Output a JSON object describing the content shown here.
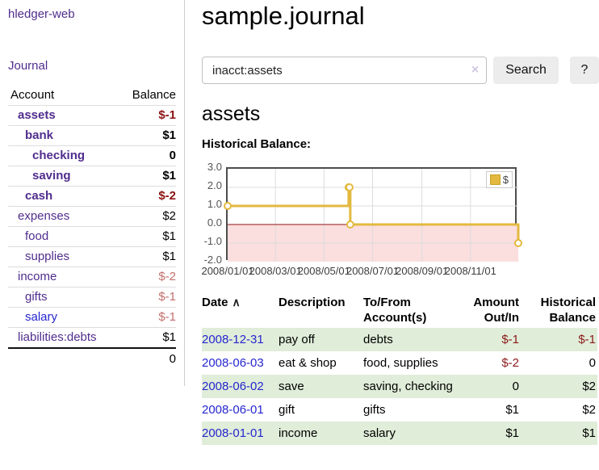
{
  "app": {
    "title": "hledger-web",
    "nav_journal": "Journal"
  },
  "sidebar": {
    "headers": {
      "account": "Account",
      "balance": "Balance"
    },
    "accounts": [
      {
        "name": "assets",
        "balance": "$-1",
        "indent": 1,
        "bold": true
      },
      {
        "name": "bank",
        "balance": "$1",
        "indent": 2,
        "bold": true
      },
      {
        "name": "checking",
        "balance": "0",
        "indent": 3,
        "bold": true
      },
      {
        "name": "saving",
        "balance": "$1",
        "indent": 3,
        "bold": true
      },
      {
        "name": "cash",
        "balance": "$-2",
        "indent": 2,
        "bold": true
      },
      {
        "name": "expenses",
        "balance": "$2",
        "indent": 1,
        "bold": false
      },
      {
        "name": "food",
        "balance": "$1",
        "indent": 2,
        "bold": false
      },
      {
        "name": "supplies",
        "balance": "$1",
        "indent": 2,
        "bold": false
      },
      {
        "name": "income",
        "balance": "$-2",
        "indent": 1,
        "bold": false
      },
      {
        "name": "gifts",
        "balance": "$-1",
        "indent": 2,
        "bold": false
      },
      {
        "name": "salary",
        "balance": "$-1",
        "indent": 2,
        "bold": false,
        "link_color": "blue"
      },
      {
        "name": "liabilities:debts",
        "balance": "$1",
        "indent": 1,
        "bold": false
      }
    ],
    "total": "0"
  },
  "header": {
    "title": "sample.journal"
  },
  "search": {
    "value": "inacct:assets",
    "clear_icon": "×",
    "button_label": "Search",
    "help_label": "?"
  },
  "account_page": {
    "title": "assets",
    "chart_label": "Historical Balance:"
  },
  "chart_data": {
    "type": "line",
    "step": true,
    "title": "Historical Balance:",
    "series": [
      {
        "name": "$",
        "color": "#e3b93f",
        "points": [
          [
            "2008-01-01",
            1
          ],
          [
            "2008-06-01",
            2
          ],
          [
            "2008-06-02",
            2
          ],
          [
            "2008-06-03",
            0
          ],
          [
            "2008-12-31",
            -1
          ]
        ]
      }
    ],
    "xrange": [
      "2008-01-01",
      "2008-12-31"
    ],
    "ylim": [
      -2,
      3
    ],
    "ytick_labels": [
      "3.0",
      "2.0",
      "1.0",
      "0.0",
      "-1.0",
      "-2.0"
    ],
    "ytick_values": [
      3,
      2,
      1,
      0,
      -1,
      -2
    ],
    "xtick_labels": [
      "2008/01/01",
      "2008/03/01",
      "2008/05/01",
      "2008/07/01",
      "2008/09/01",
      "2008/11/01"
    ],
    "grid": true,
    "legend_position": "top-right",
    "negative_region_color": "#fbdede",
    "zero_line_color": "#8f1414",
    "grid_color": "#dcdcdc"
  },
  "transactions": {
    "headers": [
      "Date",
      "Description",
      "To/From Account(s)",
      "Amount Out/In",
      "Historical Balance"
    ],
    "sort_indicator": "∧",
    "rows": [
      {
        "date": "2008-12-31",
        "description": "pay off",
        "accounts": "debts",
        "amount": "$-1",
        "balance": "$-1"
      },
      {
        "date": "2008-06-03",
        "description": "eat & shop",
        "accounts": "food, supplies",
        "amount": "$-2",
        "balance": "0"
      },
      {
        "date": "2008-06-02",
        "description": "save",
        "accounts": "saving, checking",
        "amount": "0",
        "balance": "$2"
      },
      {
        "date": "2008-06-01",
        "description": "gift",
        "accounts": "gifts",
        "amount": "$1",
        "balance": "$2"
      },
      {
        "date": "2008-01-01",
        "description": "income",
        "accounts": "salary",
        "amount": "$1",
        "balance": "$1"
      }
    ]
  },
  "colors": {
    "accent_purple": "#502d8e",
    "link_blue": "#2626cf",
    "negative_red": "#8b1212",
    "negative_soft_red": "#c3706c",
    "row_green": "#e0edd9",
    "chart_gold": "#e3b93f"
  }
}
